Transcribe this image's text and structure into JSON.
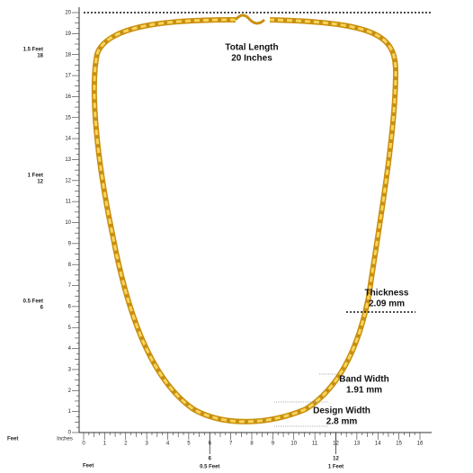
{
  "annotations": {
    "total_length": {
      "title": "Total Length",
      "value": "20 Inches"
    },
    "thickness": {
      "title": "Thickness",
      "value": "2.09 mm"
    },
    "band_width": {
      "title": "Band Width",
      "value": "1.91 mm"
    },
    "design_width": {
      "title": "Design Width",
      "value": "2.8 mm"
    }
  },
  "vertical_ruler": {
    "ticks": [
      "0",
      "1",
      "2",
      "3",
      "4",
      "5",
      "6",
      "7",
      "8",
      "9",
      "10",
      "11",
      "12",
      "13",
      "14",
      "15",
      "16",
      "17",
      "18",
      "19",
      "20"
    ],
    "feet_marks": [
      {
        "feet": "0.5 Feet",
        "inch": "6"
      },
      {
        "feet": "1 Feet",
        "inch": "12"
      },
      {
        "feet": "1.5 Feet",
        "inch": "18"
      }
    ],
    "unit_labels": {
      "feet": "Feet",
      "inches": "Inches"
    }
  },
  "horizontal_ruler": {
    "ticks": [
      "0",
      "1",
      "2",
      "3",
      "4",
      "5",
      "6",
      "7",
      "8",
      "9",
      "10",
      "11",
      "12",
      "13",
      "14",
      "15",
      "16"
    ],
    "feet_marks": [
      {
        "feet": "0.5 Feet",
        "inch": "6"
      },
      {
        "feet": "1 Feet",
        "inch": "12"
      }
    ],
    "unit_label": "Feet"
  }
}
